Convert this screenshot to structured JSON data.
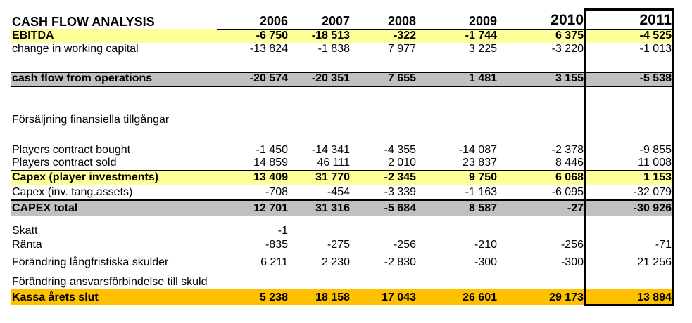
{
  "table": {
    "title": "CASH FLOW ANALYSIS",
    "years": [
      "2006",
      "2007",
      "2008",
      "2009",
      "2010",
      "2011"
    ],
    "highlighted_year": "2011",
    "colors": {
      "row_highlight_yellow": "#FFFF99",
      "row_highlight_gray": "#C0C0C0",
      "row_highlight_gold": "#FFC000",
      "emphasis_box_border": "#000000"
    },
    "rows": [
      {
        "name": "ebitda",
        "label": "EBITDA",
        "style": "yellow",
        "values": [
          "-6 750",
          "-18 513",
          "-322",
          "-1 744",
          "6 375",
          "-4 525"
        ]
      },
      {
        "name": "change-in-working-capital",
        "label": "change in working capital",
        "style": "plain",
        "values": [
          "-13 824",
          "-1 838",
          "7 977",
          "3 225",
          "-3 220",
          "-1 013"
        ]
      },
      {
        "name": "blank-1",
        "style": "blank",
        "label": "",
        "values": [
          "",
          "",
          "",
          "",
          "",
          ""
        ]
      },
      {
        "name": "cash-flow-from-operations",
        "label": "cash flow from operations",
        "style": "gray-band",
        "values": [
          "-20 574",
          "-20 351",
          "7 655",
          "1 481",
          "3 155",
          "-5 538"
        ]
      },
      {
        "name": "blank-2",
        "style": "blank",
        "label": "",
        "values": [
          "",
          "",
          "",
          "",
          "",
          ""
        ]
      },
      {
        "name": "blank-3",
        "style": "blank",
        "label": "",
        "values": [
          "",
          "",
          "",
          "",
          "",
          ""
        ]
      },
      {
        "name": "forsaljning-finansiella-tillgangar",
        "label": "Försäljning finansiella tillgångar",
        "style": "plain",
        "values": [
          "",
          "",
          "",
          "",
          "",
          ""
        ]
      },
      {
        "name": "blank-4",
        "style": "blank",
        "label": "",
        "values": [
          "",
          "",
          "",
          "",
          "",
          ""
        ]
      },
      {
        "name": "players-contract-bought",
        "label": "Players contract bought",
        "style": "plain",
        "values": [
          "-1 450",
          "-14 341",
          "-4 355",
          "-14 087",
          "-2 378",
          "-9 855"
        ]
      },
      {
        "name": "players-contract-sold",
        "label": "Players contract sold",
        "style": "plain",
        "values": [
          "14 859",
          "46 111",
          "2 010",
          "23 837",
          "8 446",
          "11 008"
        ]
      },
      {
        "name": "capex-player-investments",
        "label": "Capex (player investments)",
        "style": "yellow-topline",
        "values": [
          "13 409",
          "31 770",
          "-2 345",
          "9 750",
          "6 068",
          "1 153"
        ]
      },
      {
        "name": "capex-inv-tang-assets",
        "label": "Capex (inv. tang.assets)",
        "style": "plain",
        "values": [
          "-708",
          "-454",
          "-3 339",
          "-1 163",
          "-6 095",
          "-32 079"
        ]
      },
      {
        "name": "capex-total",
        "label": "CAPEX total",
        "style": "gray-topline",
        "values": [
          "12 701",
          "31 316",
          "-5 684",
          "8 587",
          "-27",
          "-30 926"
        ]
      },
      {
        "name": "blank-5",
        "style": "blank",
        "label": "",
        "values": [
          "",
          "",
          "",
          "",
          "",
          ""
        ]
      },
      {
        "name": "skatt",
        "label": "Skatt",
        "style": "plain",
        "values": [
          "-1",
          "",
          "",
          "",
          "",
          ""
        ]
      },
      {
        "name": "ranta",
        "label": "Ränta",
        "style": "plain",
        "values": [
          "-835",
          "-275",
          "-256",
          "-210",
          "-256",
          "-71"
        ]
      },
      {
        "name": "forandring-langfristiska-skulder",
        "label": "Förändring långfristiska skulder",
        "style": "plain",
        "values": [
          "6 211",
          "2 230",
          "-2 830",
          "-300",
          "-300",
          "21 256"
        ]
      },
      {
        "name": "forandring-ansvarsforbindelse-till-skuld",
        "label": "Förändring ansvarsförbindelse till skuld",
        "style": "plain",
        "values": [
          "",
          "",
          "",
          "",
          "",
          ""
        ]
      },
      {
        "name": "kassa-arets-slut",
        "label": "Kassa årets slut",
        "style": "gold",
        "values": [
          "5 238",
          "18 158",
          "17 043",
          "26 601",
          "29 173",
          "13 894"
        ]
      }
    ]
  }
}
